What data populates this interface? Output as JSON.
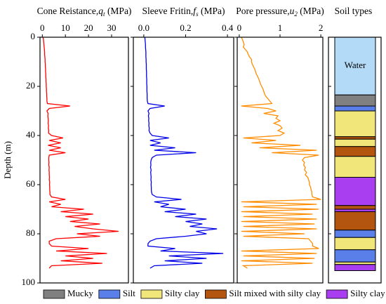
{
  "chart_data": [
    {
      "type": "line",
      "title": {
        "text": "Cone Reistance,",
        "symbol": "q",
        "subscript": "t",
        "unit": " (MPa)"
      },
      "ylabel": "Depth (m)",
      "ylim": [
        0,
        100
      ],
      "yticks": [
        0,
        20,
        40,
        60,
        80,
        100
      ],
      "yreversed": true,
      "xlim": [
        -1,
        37.3
      ],
      "xticks": [
        0,
        10,
        20,
        30
      ],
      "color": "#ff0000",
      "y": [
        0,
        1,
        2,
        3,
        4,
        5,
        6,
        7,
        8,
        9,
        10,
        11,
        12,
        13,
        14,
        15,
        16,
        17,
        18,
        19,
        20,
        21,
        22,
        23,
        24,
        25,
        26,
        27,
        28,
        29,
        30,
        31,
        32,
        33,
        34,
        35,
        36,
        37,
        38,
        39,
        40,
        41,
        42,
        43,
        44,
        45,
        46,
        47,
        48,
        49,
        50,
        51,
        52,
        53,
        54,
        55,
        56,
        57,
        58,
        59,
        60,
        61,
        62,
        63,
        64,
        65,
        66,
        67,
        68,
        69,
        70,
        71,
        72,
        73,
        74,
        75,
        76,
        77,
        78,
        79,
        80,
        81,
        82,
        83,
        84,
        85,
        86,
        87,
        88,
        89,
        90,
        91,
        92,
        93,
        94
      ],
      "values": [
        0.3,
        0.5,
        0.6,
        0.7,
        0.8,
        0.9,
        1,
        1,
        1.1,
        1.2,
        1.2,
        1.3,
        1.3,
        1.4,
        1.4,
        1.5,
        1.5,
        1.6,
        1.6,
        1.7,
        1.7,
        1.8,
        1.8,
        1.9,
        1.9,
        2,
        2,
        2.2,
        12,
        3,
        2,
        2.5,
        2.4,
        2.5,
        2.6,
        2.5,
        2.7,
        2.6,
        2.8,
        2.7,
        4,
        9,
        3,
        8,
        2.5,
        8,
        3,
        10,
        3,
        2.8,
        2.8,
        2.9,
        2.8,
        3,
        2.9,
        3,
        3,
        3.1,
        3,
        3.2,
        3.1,
        3.2,
        3.2,
        3.3,
        3.3,
        4,
        10,
        3,
        8,
        4,
        18,
        8,
        22,
        10,
        20,
        12,
        25,
        14,
        22,
        33,
        15,
        25,
        6,
        3,
        3,
        4,
        20,
        6,
        28,
        10,
        22,
        8,
        26,
        4,
        3
      ]
    },
    {
      "type": "line",
      "title": {
        "text": "Sleeve Fritin,",
        "symbol": "f",
        "subscript": "s",
        "unit": " (MPa)"
      },
      "ylim": [
        0,
        100
      ],
      "yreversed": true,
      "xlim": [
        -0.05,
        0.43
      ],
      "xticks": [
        {
          "value": 0,
          "label": "0.0"
        },
        0.2,
        0.4
      ],
      "color": "#0000e6",
      "y": [
        0,
        1,
        2,
        3,
        4,
        5,
        6,
        7,
        8,
        9,
        10,
        11,
        12,
        13,
        14,
        15,
        16,
        17,
        18,
        19,
        20,
        21,
        22,
        23,
        24,
        25,
        26,
        27,
        28,
        29,
        30,
        31,
        32,
        33,
        34,
        35,
        36,
        37,
        38,
        39,
        40,
        41,
        42,
        43,
        44,
        45,
        46,
        47,
        48,
        49,
        50,
        51,
        52,
        53,
        54,
        55,
        56,
        57,
        58,
        59,
        60,
        61,
        62,
        63,
        64,
        65,
        66,
        67,
        68,
        69,
        70,
        71,
        72,
        73,
        74,
        75,
        76,
        77,
        78,
        79,
        80,
        81,
        82,
        83,
        84,
        85,
        86,
        87,
        88,
        89,
        90,
        91,
        92,
        93,
        94
      ],
      "values": [
        0.005,
        0.006,
        0.007,
        0.008,
        0.008,
        0.009,
        0.01,
        0.01,
        0.01,
        0.011,
        0.011,
        0.012,
        0.012,
        0.012,
        0.013,
        0.013,
        0.013,
        0.014,
        0.014,
        0.014,
        0.015,
        0.015,
        0.015,
        0.016,
        0.016,
        0.016,
        0.017,
        0.02,
        0.1,
        0.03,
        0.02,
        0.025,
        0.022,
        0.024,
        0.023,
        0.025,
        0.024,
        0.026,
        0.025,
        0.03,
        0.04,
        0.12,
        0.03,
        0.08,
        0.03,
        0.15,
        0.05,
        0.25,
        0.06,
        0.04,
        0.035,
        0.033,
        0.034,
        0.032,
        0.035,
        0.033,
        0.034,
        0.035,
        0.034,
        0.036,
        0.035,
        0.036,
        0.036,
        0.037,
        0.04,
        0.06,
        0.18,
        0.05,
        0.12,
        0.08,
        0.2,
        0.1,
        0.25,
        0.15,
        0.3,
        0.2,
        0.28,
        0.22,
        0.35,
        0.25,
        0.3,
        0.2,
        0.06,
        0.03,
        0.02,
        0.02,
        0.15,
        0.08,
        0.38,
        0.12,
        0.3,
        0.1,
        0.28,
        0.05,
        0.03
      ]
    },
    {
      "type": "line",
      "title": {
        "text": "Pore pressure,",
        "symbol": "u",
        "subscript": "2",
        "unit": " (MPa)"
      },
      "ylim": [
        0,
        100
      ],
      "yreversed": true,
      "xlim": [
        -0.05,
        2.05
      ],
      "xticks": [
        0,
        1,
        2
      ],
      "color": "#ff8c00",
      "y": [
        0,
        1,
        2,
        3,
        4,
        5,
        6,
        7,
        8,
        9,
        10,
        11,
        12,
        13,
        14,
        15,
        16,
        17,
        18,
        19,
        20,
        21,
        22,
        23,
        24,
        25,
        26,
        27,
        28,
        29,
        30,
        31,
        32,
        33,
        34,
        35,
        36,
        37,
        38,
        39,
        40,
        41,
        42,
        43,
        44,
        45,
        46,
        47,
        48,
        49,
        50,
        51,
        52,
        53,
        54,
        55,
        56,
        57,
        58,
        59,
        60,
        61,
        62,
        63,
        64,
        65,
        66,
        67,
        68,
        69,
        70,
        71,
        72,
        73,
        74,
        75,
        76,
        77,
        78,
        79,
        80,
        81,
        82,
        83,
        84,
        85,
        86,
        87,
        88,
        89,
        90,
        91,
        92,
        93,
        94
      ],
      "values": [
        0.05,
        0.08,
        0.1,
        0.12,
        0.1,
        0.15,
        0.2,
        0.22,
        0.25,
        0.3,
        0.3,
        0.32,
        0.35,
        0.38,
        0.4,
        0.42,
        0.45,
        0.48,
        0.5,
        0.52,
        0.55,
        0.58,
        0.6,
        0.62,
        0.65,
        0.7,
        0.75,
        0.8,
        0.05,
        0.7,
        0.9,
        0.6,
        0.95,
        0.9,
        1,
        0.85,
        1,
        1.05,
        0.95,
        1.1,
        1,
        0.1,
        0.9,
        0.3,
        1.5,
        0.5,
        1.9,
        0.8,
        1.95,
        1.6,
        1.55,
        1.6,
        1.58,
        1.62,
        1.6,
        1.65,
        1.62,
        1.68,
        1.7,
        1.72,
        1.72,
        1.75,
        1.76,
        1.78,
        1.78,
        1.8,
        2,
        0.05,
        1.9,
        0.1,
        1.95,
        0.05,
        1.8,
        0.1,
        1.9,
        0.05,
        1.85,
        0.1,
        1.9,
        0.05,
        1.6,
        0.1,
        1.7,
        1.75,
        1.8,
        1.8,
        1.95,
        0.05,
        1.9,
        0.1,
        1.85,
        0.05,
        1.8,
        0.1,
        0.2
      ]
    },
    {
      "type": "strata",
      "title": "Soil types",
      "annotation": "Water",
      "ylim": [
        0,
        100
      ],
      "yreversed": true,
      "layers": [
        {
          "top": 0,
          "bottom": 23.5,
          "color": "#b3daf7"
        },
        {
          "top": 23.5,
          "bottom": 28,
          "color": "#808080"
        },
        {
          "top": 28,
          "bottom": 30,
          "color": "#5b7fe8"
        },
        {
          "top": 30,
          "bottom": 40.5,
          "color": "#f0e67a"
        },
        {
          "top": 40.5,
          "bottom": 41.5,
          "color": "#b3540f"
        },
        {
          "top": 41.5,
          "bottom": 44.5,
          "color": "#f0e67a"
        },
        {
          "top": 44.5,
          "bottom": 48.5,
          "color": "#b3540f"
        },
        {
          "top": 48.5,
          "bottom": 57,
          "color": "#f0e67a"
        },
        {
          "top": 57,
          "bottom": 68.5,
          "color": "#a83ef0"
        },
        {
          "top": 68.5,
          "bottom": 70,
          "color": "#b3540f"
        },
        {
          "top": 70,
          "bottom": 71,
          "color": "#a83ef0"
        },
        {
          "top": 71,
          "bottom": 78.5,
          "color": "#b3540f"
        },
        {
          "top": 78.5,
          "bottom": 81.5,
          "color": "#5b7fe8"
        },
        {
          "top": 81.5,
          "bottom": 86.5,
          "color": "#f0e67a"
        },
        {
          "top": 86.5,
          "bottom": 91.5,
          "color": "#5b7fe8"
        },
        {
          "top": 91.5,
          "bottom": 92.5,
          "color": "#f0e67a"
        },
        {
          "top": 92.5,
          "bottom": 95,
          "color": "#a83ef0"
        }
      ],
      "series": [
        {
          "name": "Mucky",
          "color": "#808080"
        },
        {
          "name": "Silt",
          "color": "#5b7fe8"
        },
        {
          "name": "Silty clay",
          "color": "#f0e67a"
        },
        {
          "name": "Silt mixed with silty clay",
          "color": "#b3540f"
        },
        {
          "name": "Silty clay mixed with silt",
          "color": "#a83ef0"
        }
      ]
    }
  ]
}
